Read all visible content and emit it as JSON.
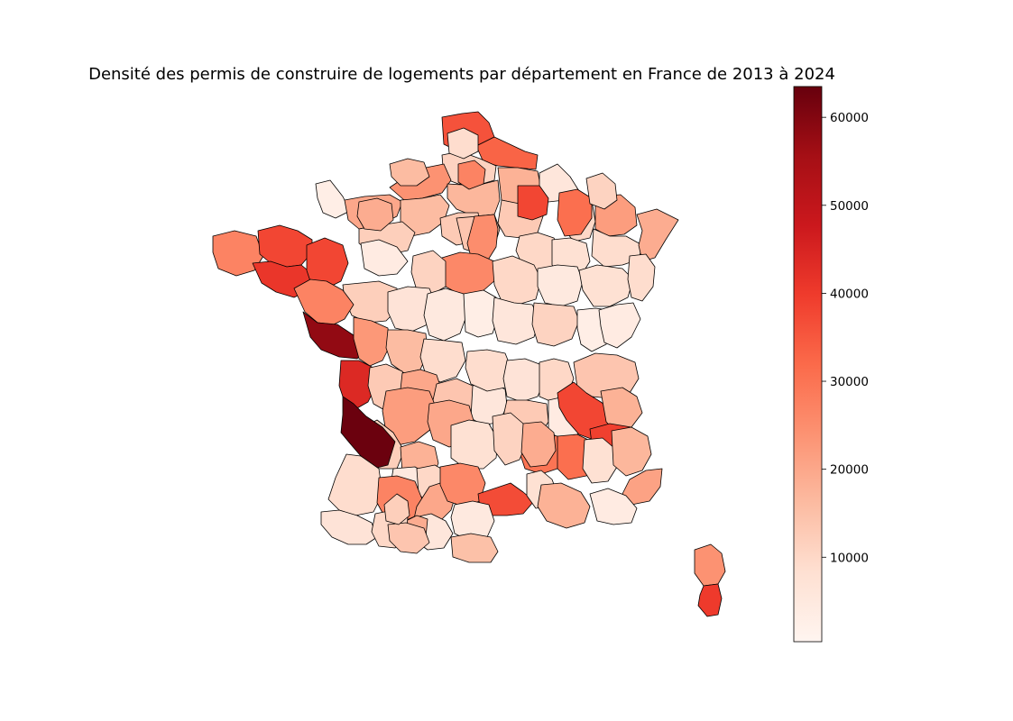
{
  "title": "Densité des permis de construire de logements par département en France de 2013 à 2024",
  "colorbar": {
    "colormap": "Reds",
    "min": 400,
    "max": 63500,
    "ticks": [
      {
        "value": 10000,
        "label": "10000"
      },
      {
        "value": 20000,
        "label": "20000"
      },
      {
        "value": 30000,
        "label": "30000"
      },
      {
        "value": 40000,
        "label": "40000"
      },
      {
        "value": 50000,
        "label": "50000"
      },
      {
        "value": 60000,
        "label": "60000"
      }
    ]
  },
  "colors": {
    "stops": [
      "#fff5f0",
      "#fee0d2",
      "#fcbba1",
      "#fc9272",
      "#fb6a4a",
      "#ef3b2c",
      "#cb181d",
      "#a50f15",
      "#67000d"
    ],
    "outline": "#000000"
  },
  "chart_data": {
    "type": "choropleth",
    "legend": "colorbar-right",
    "regions": [
      {
        "value": 36000
      },
      {
        "value": 33000
      },
      {
        "value": 11000
      },
      {
        "value": 24000
      },
      {
        "value": 17000
      },
      {
        "value": 18000
      },
      {
        "value": 6000
      },
      {
        "value": 3000
      },
      {
        "value": 20000
      },
      {
        "value": 16000
      },
      {
        "value": 13000
      },
      {
        "value": 10000
      },
      {
        "value": 22000
      },
      {
        "value": 9000
      },
      {
        "value": 19000
      },
      {
        "value": 13000
      },
      {
        "value": 14000
      },
      {
        "value": 25000
      },
      {
        "value": 27000
      },
      {
        "value": 12000
      },
      {
        "value": 38000
      },
      {
        "value": 41000
      },
      {
        "value": 38000
      },
      {
        "value": 4000
      },
      {
        "value": 10000
      },
      {
        "value": 8000
      },
      {
        "value": 26000
      },
      {
        "value": 11000
      },
      {
        "value": 10000
      },
      {
        "value": 5000
      },
      {
        "value": 8000
      },
      {
        "value": 9000
      },
      {
        "value": 12000
      },
      {
        "value": 7000
      },
      {
        "value": 5000
      },
      {
        "value": 3000
      },
      {
        "value": 27000
      },
      {
        "value": 6000
      },
      {
        "value": 11000
      },
      {
        "value": 3000
      },
      {
        "value": 4000
      },
      {
        "value": 58000
      },
      {
        "value": 23000
      },
      {
        "value": 16000
      },
      {
        "value": 9000
      },
      {
        "value": 44000
      },
      {
        "value": 13000
      },
      {
        "value": 20000
      },
      {
        "value": 14000
      },
      {
        "value": 6000
      },
      {
        "value": 9000
      },
      {
        "value": 7000
      },
      {
        "value": 10000
      },
      {
        "value": 13000
      },
      {
        "value": 4000
      },
      {
        "value": 14000
      },
      {
        "value": 38000
      },
      {
        "value": 18000
      },
      {
        "value": 22000
      },
      {
        "value": 20000
      },
      {
        "value": 30000
      },
      {
        "value": 31000
      },
      {
        "value": 39000
      },
      {
        "value": 12000
      },
      {
        "value": 63000
      },
      {
        "value": 18000
      },
      {
        "value": 5000
      },
      {
        "value": 10000
      },
      {
        "value": 8000
      },
      {
        "value": 11000
      },
      {
        "value": 19000
      },
      {
        "value": 8000
      },
      {
        "value": 17000
      },
      {
        "value": 21000
      },
      {
        "value": 9000
      },
      {
        "value": 27000
      },
      {
        "value": 20000
      },
      {
        "value": 6000
      },
      {
        "value": 26000
      },
      {
        "value": 19000
      },
      {
        "value": 7000
      },
      {
        "value": 10000
      },
      {
        "value": 14000
      },
      {
        "value": 37000
      },
      {
        "value": 8000
      },
      {
        "value": 18000
      },
      {
        "value": 4000
      },
      {
        "value": 5000
      },
      {
        "value": 15000
      },
      {
        "value": 24000
      },
      {
        "value": 40000
      },
      {
        "value": 31000
      },
      {
        "value": 38000
      },
      {
        "value": 16000
      },
      {
        "value": 19000
      },
      {
        "value": 9000
      },
      {
        "value": 27000
      },
      {
        "value": 11000
      },
      {
        "value": 12000
      }
    ]
  }
}
